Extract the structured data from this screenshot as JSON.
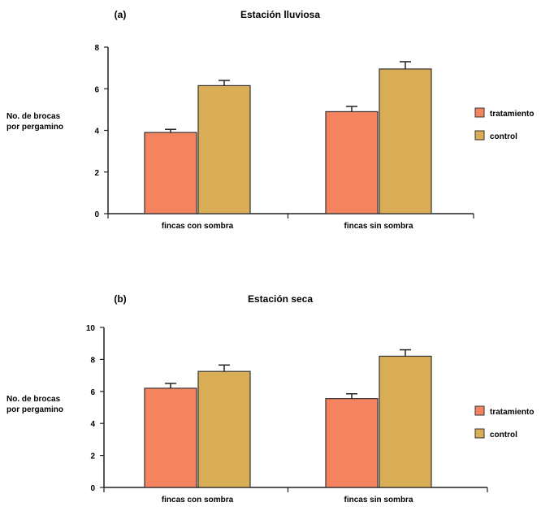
{
  "chart_data": [
    {
      "type": "bar",
      "panel_label": "(a)",
      "title": "Estación lluviosa",
      "ylabel": "No. de brocas por pergamino",
      "categories": [
        "fincas con sombra",
        "fincas sin sombra"
      ],
      "series": [
        {
          "name": "tratamiento",
          "color": "#F4845F",
          "values": [
            3.9,
            4.9
          ],
          "errors": [
            0.15,
            0.25
          ]
        },
        {
          "name": "control",
          "color": "#D9AD55",
          "values": [
            6.15,
            6.95
          ],
          "errors": [
            0.25,
            0.35
          ]
        }
      ],
      "ylim": [
        0,
        8
      ],
      "yticks": [
        0,
        2,
        4,
        6,
        8
      ],
      "legend": "right",
      "grid": false
    },
    {
      "type": "bar",
      "panel_label": "(b)",
      "title": "Estación seca",
      "ylabel": "No. de brocas por pergamino",
      "categories": [
        "fincas con sombra",
        "fincas sin sombra"
      ],
      "series": [
        {
          "name": "tratamiento",
          "color": "#F4845F",
          "values": [
            6.2,
            5.55
          ],
          "errors": [
            0.3,
            0.3
          ]
        },
        {
          "name": "control",
          "color": "#D9AD55",
          "values": [
            7.25,
            8.2
          ],
          "errors": [
            0.4,
            0.4
          ]
        }
      ],
      "ylim": [
        0,
        10
      ],
      "yticks": [
        0,
        2,
        4,
        6,
        8,
        10
      ],
      "legend": "right",
      "grid": false
    }
  ]
}
